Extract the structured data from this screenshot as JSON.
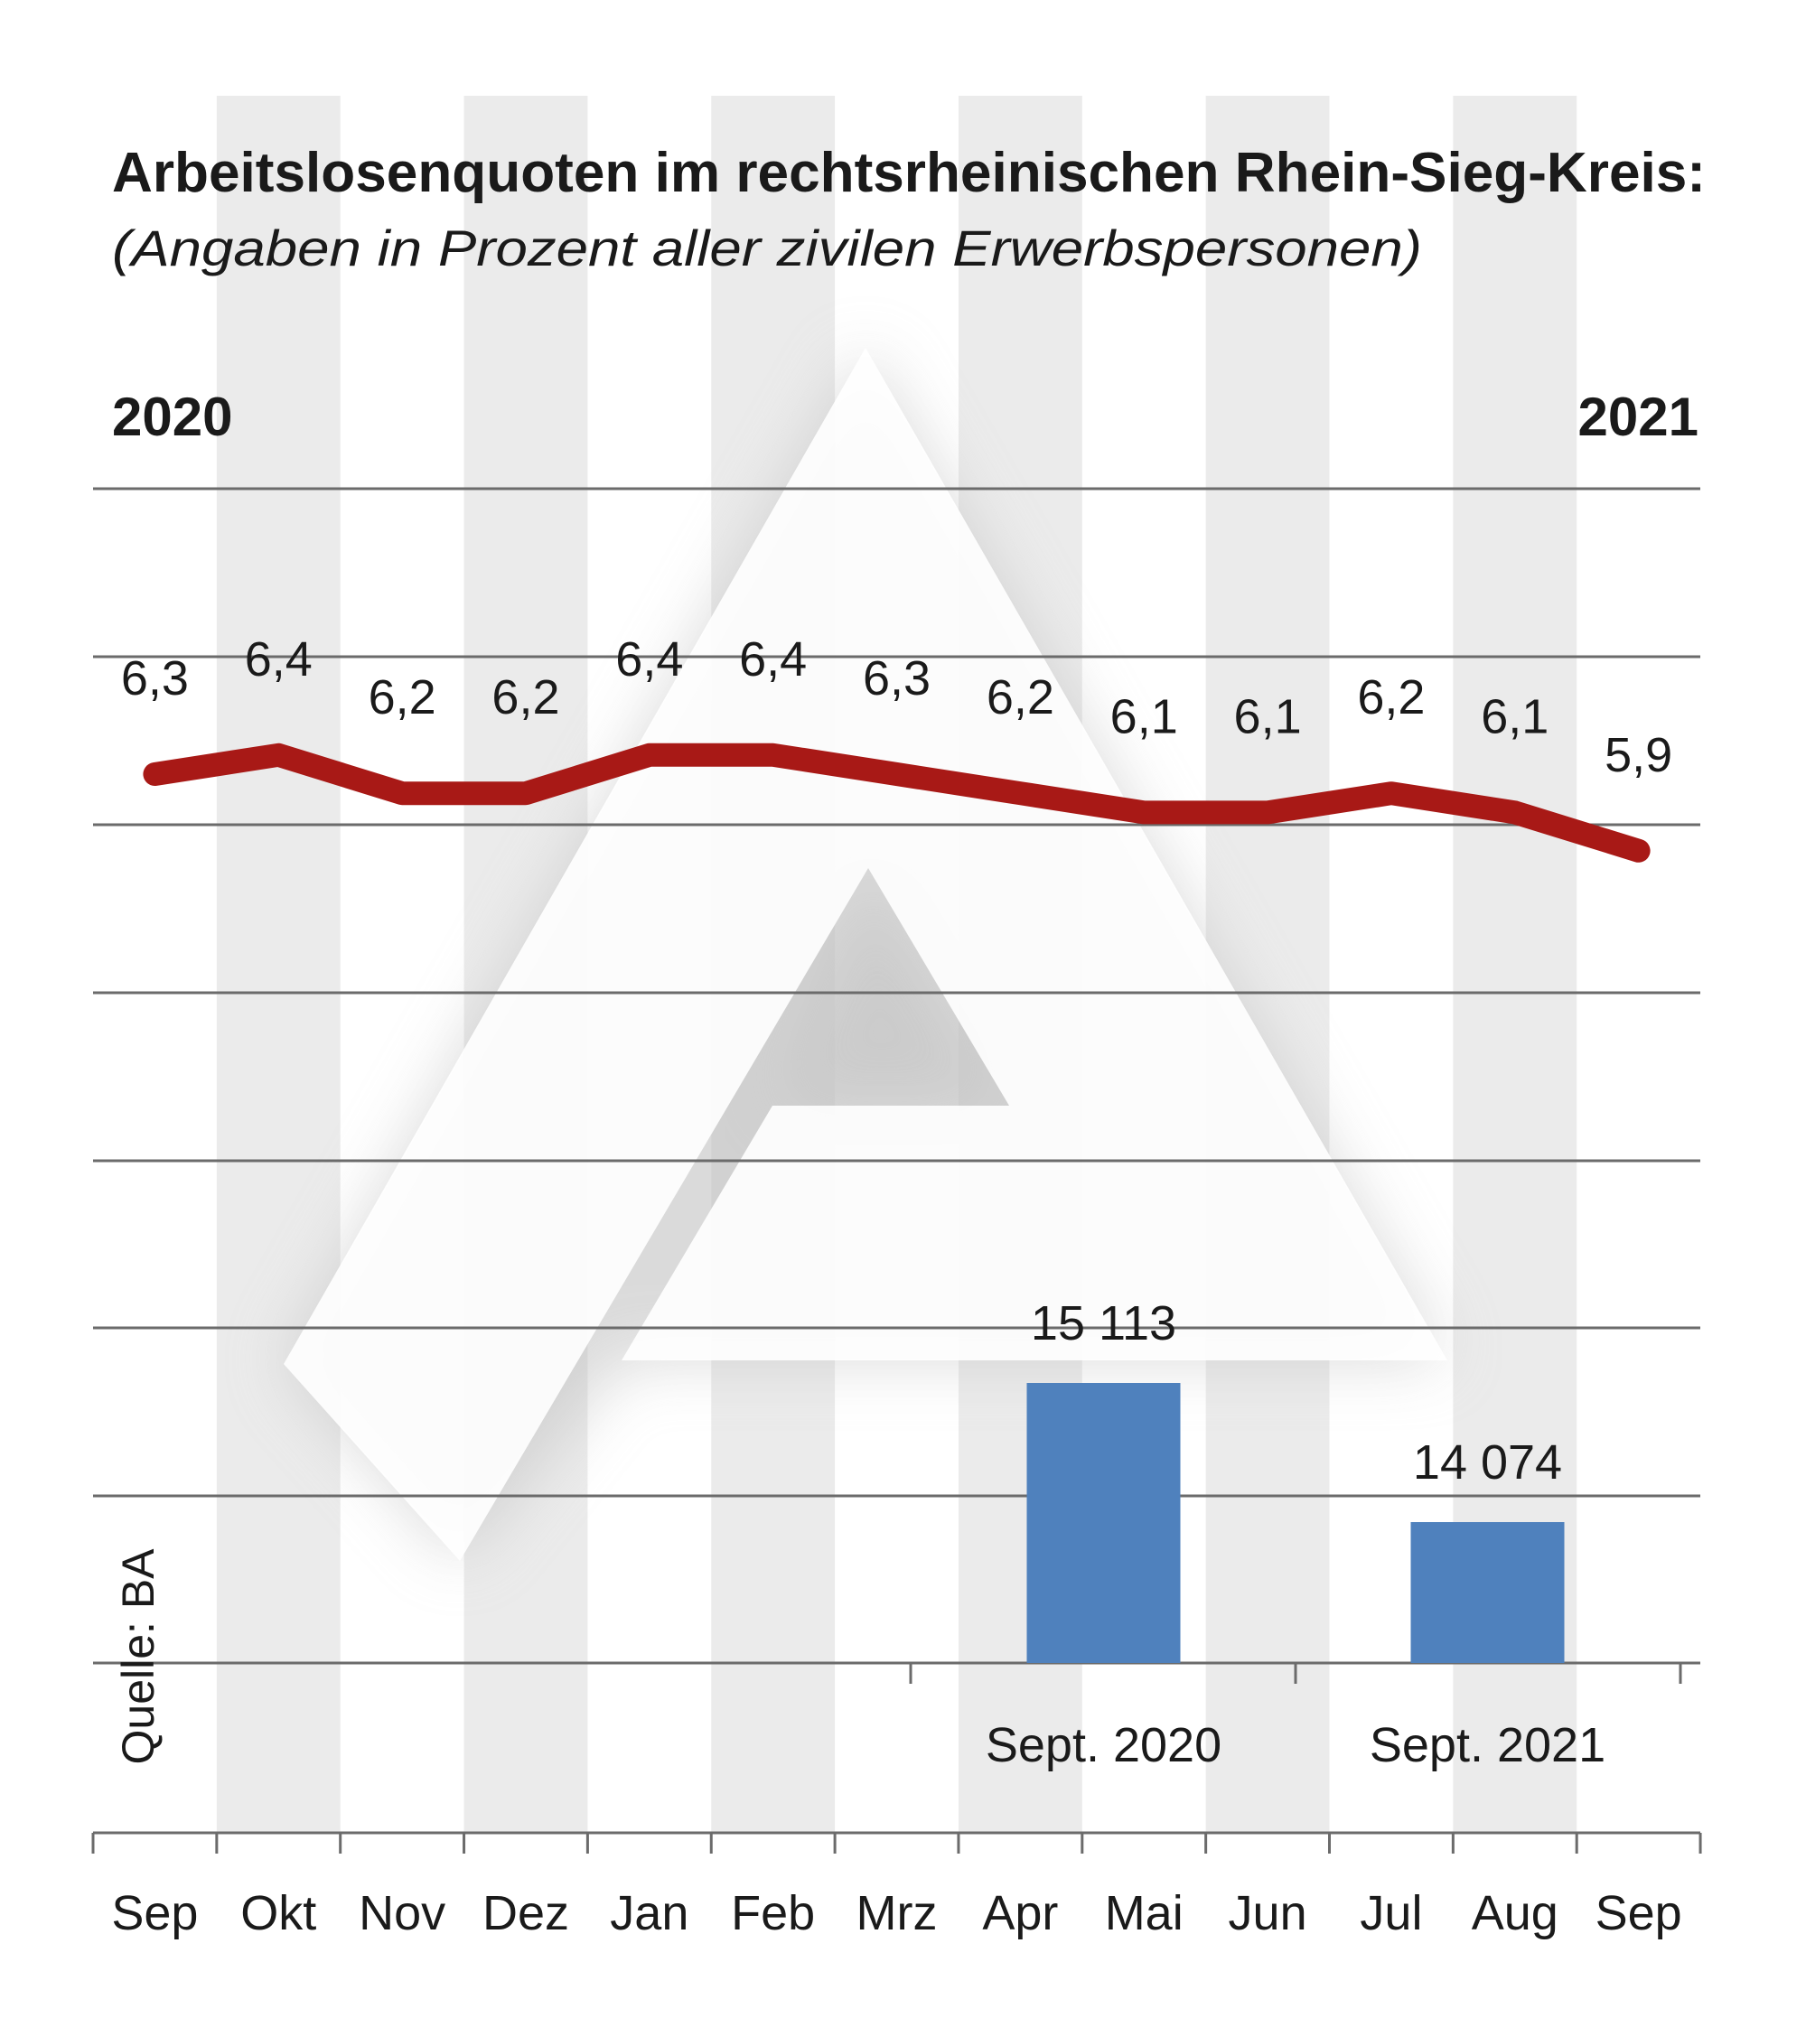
{
  "chart_data": {
    "type": "line+bar",
    "title": "Arbeitslosenquoten im rechtsrheinischen Rhein-Sieg-Kreis:",
    "subtitle": "(Angaben in Prozent aller zivilen Erwerbspersonen)",
    "year_start": "2020",
    "year_end": "2021",
    "source": "Quelle: BA",
    "grid": true,
    "categories": [
      "Sep",
      "Okt",
      "Nov",
      "Dez",
      "Jan",
      "Feb",
      "Mrz",
      "Apr",
      "Mai",
      "Jun",
      "Jul",
      "Aug",
      "Sep"
    ],
    "line_series": {
      "values": [
        6.3,
        6.4,
        6.2,
        6.2,
        6.4,
        6.4,
        6.3,
        6.2,
        6.1,
        6.1,
        6.2,
        6.1,
        5.9
      ],
      "labels": [
        "6,3",
        "6,4",
        "6,2",
        "6,2",
        "6,4",
        "6,4",
        "6,3",
        "6,2",
        "6,1",
        "6,1",
        "6,2",
        "6,1",
        "5,9"
      ],
      "color": "#a81916"
    },
    "bar_series": {
      "categories": [
        "Sept. 2020",
        "Sept. 2021"
      ],
      "values": [
        15113,
        14074
      ],
      "labels": [
        "15 113",
        "14 074"
      ],
      "color": "#4f81bd"
    },
    "stripe_color": "#ebebeb"
  }
}
